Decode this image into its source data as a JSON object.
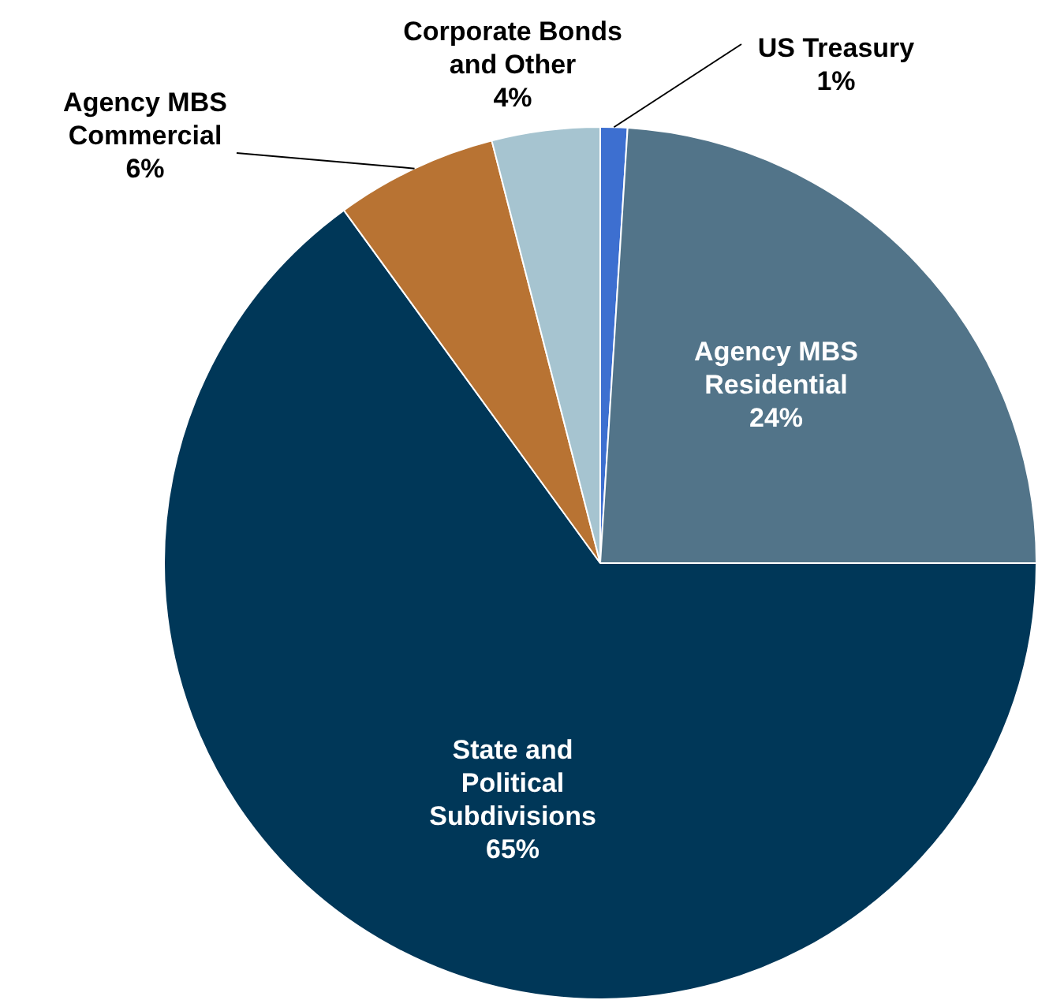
{
  "chart_data": {
    "type": "pie",
    "categories": [
      "US Treasury",
      "Agency MBS Residential",
      "State and Political Subdivisions",
      "Agency MBS Commercial",
      "Corporate Bonds and Other"
    ],
    "values": [
      1,
      24,
      65,
      6,
      4
    ],
    "colors": [
      "#3d6fd0",
      "#527489",
      "#003758",
      "#b87333",
      "#a6c4d0"
    ],
    "value_labels": [
      "1%",
      "24%",
      "65%",
      "6%",
      "4%"
    ],
    "legend": false
  }
}
